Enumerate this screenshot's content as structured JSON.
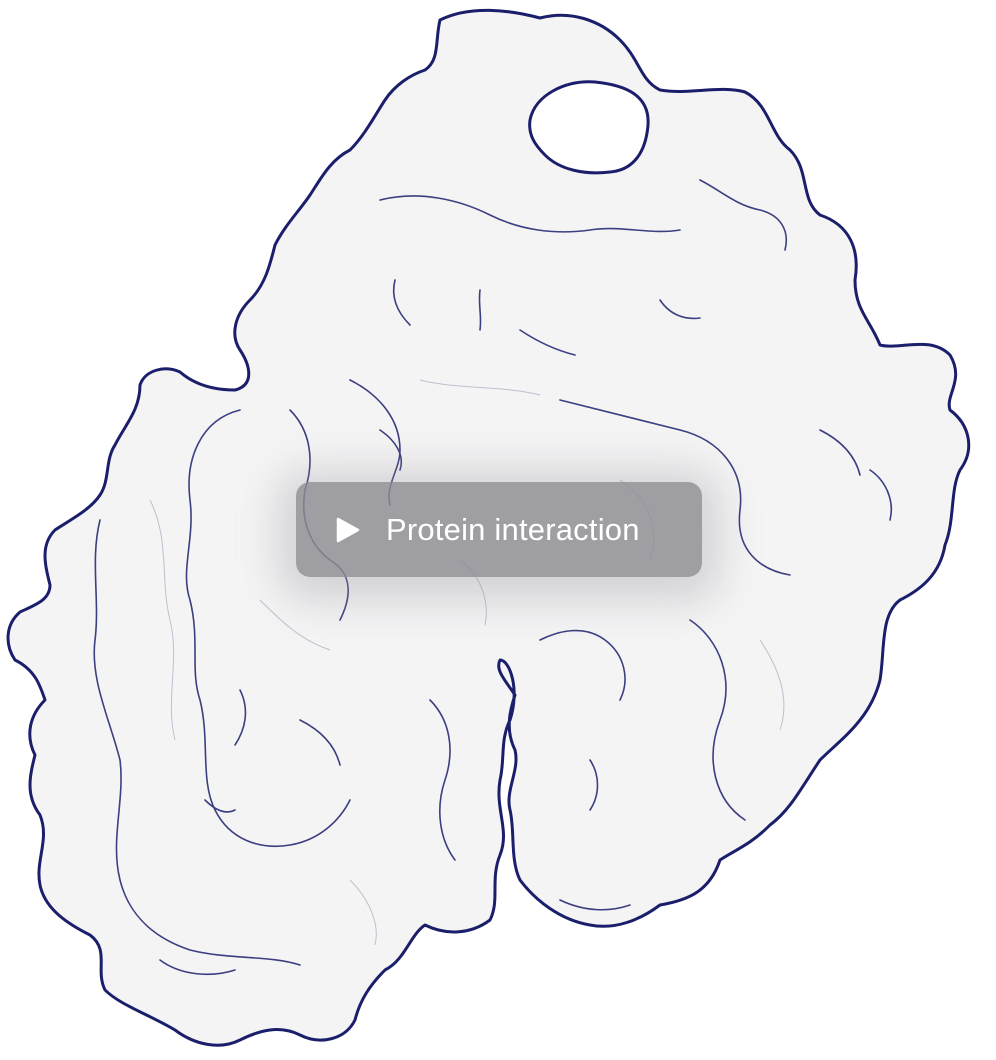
{
  "video_player": {
    "play_label": "Protein interaction",
    "play_icon": "play-icon"
  },
  "colors": {
    "outline": "#1b1f6b",
    "surface": "#f4f4f5",
    "button_bg": "#8c8c91",
    "label": "#ffffff"
  }
}
